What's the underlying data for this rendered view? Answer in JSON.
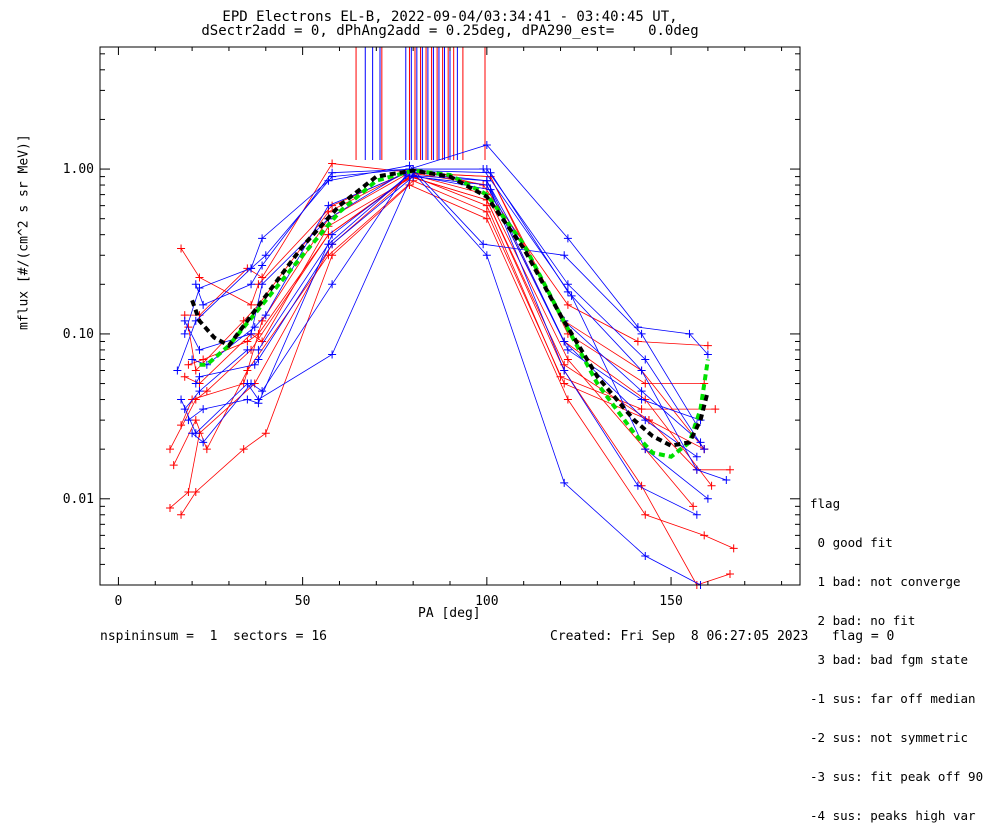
{
  "title_line1": "EPD Electrons EL-B, 2022-09-04/03:34:41 - 03:40:45 UT,",
  "title_line2": "dSectr2add = 0, dPhAng2add = 0.25deg, dPA290_est=    0.0deg",
  "footer": {
    "left": "nspininsum =  1  sectors = 16",
    "right": "Created: Fri Sep  8 06:27:05 2023   flag = 0"
  },
  "legend": {
    "title": "flag",
    "items": [
      " 0 good fit",
      " 1 bad: not converge",
      " 2 bad: no fit",
      " 3 bad: bad fgm state",
      "-1 sus: far off median",
      "-2 sus: not symmetric",
      "-3 sus: fit peak off 90",
      "-4 sus: peaks high var"
    ]
  },
  "colors": {
    "red": "#ff0000",
    "blue": "#0000ff",
    "green": "#00e000",
    "black": "#000000"
  },
  "chart_data": {
    "type": "line",
    "xlabel": "PA [deg]",
    "ylabel": "mflux [#/(cm^2 s sr MeV)]",
    "xlim": [
      -5,
      185
    ],
    "ylim": [
      0.003,
      5.5
    ],
    "ylog": true,
    "x_ticks": [
      0,
      50,
      100,
      150
    ],
    "y_ticks": [
      {
        "value": 0.01,
        "label": "0.01"
      },
      {
        "value": 0.1,
        "label": "0.10"
      },
      {
        "value": 1.0,
        "label": "1.00"
      }
    ],
    "grid": false,
    "legend_position": "lower-right outside",
    "series": [
      {
        "color": "red",
        "x": [
          14,
          19,
          22,
          37,
          58,
          79,
          100,
          121,
          142,
          157,
          166
        ],
        "y": [
          0.0088,
          0.011,
          0.025,
          0.05,
          0.35,
          0.9,
          0.65,
          0.06,
          0.012,
          0.003,
          0.0035
        ]
      },
      {
        "color": "red",
        "x": [
          14,
          21,
          24,
          36,
          57,
          80,
          100,
          122,
          143,
          156
        ],
        "y": [
          0.02,
          0.04,
          0.045,
          0.08,
          0.4,
          0.92,
          0.7,
          0.07,
          0.02,
          0.009
        ]
      },
      {
        "color": "red",
        "x": [
          15,
          21,
          24,
          35,
          57,
          80,
          100,
          121,
          144,
          159
        ],
        "y": [
          0.016,
          0.03,
          0.02,
          0.06,
          0.3,
          0.85,
          0.55,
          0.05,
          0.03,
          0.02
        ]
      },
      {
        "color": "red",
        "x": [
          17,
          21,
          34,
          40,
          58,
          79,
          100,
          122,
          143,
          159,
          167
        ],
        "y": [
          0.008,
          0.011,
          0.02,
          0.025,
          0.3,
          0.8,
          0.5,
          0.04,
          0.008,
          0.006,
          0.005
        ]
      },
      {
        "color": "red",
        "x": [
          17,
          20,
          34,
          39,
          57,
          79,
          100,
          121,
          143,
          161
        ],
        "y": [
          0.028,
          0.04,
          0.05,
          0.12,
          0.5,
          0.95,
          0.8,
          0.09,
          0.04,
          0.012
        ]
      },
      {
        "color": "red",
        "x": [
          17,
          22,
          36,
          38,
          58,
          78,
          101,
          121,
          142,
          159
        ],
        "y": [
          0.33,
          0.22,
          0.15,
          0.2,
          0.6,
          0.95,
          0.9,
          0.12,
          0.06,
          0.02
        ]
      },
      {
        "color": "red",
        "x": [
          18,
          22,
          35,
          39,
          58,
          80,
          101,
          122,
          143,
          159
        ],
        "y": [
          0.13,
          0.13,
          0.25,
          0.22,
          1.08,
          0.95,
          0.9,
          0.1,
          0.05,
          0.05
        ]
      },
      {
        "color": "red",
        "x": [
          19,
          21,
          34,
          38,
          57,
          80,
          99,
          122,
          141,
          160
        ],
        "y": [
          0.11,
          0.06,
          0.12,
          0.15,
          0.55,
          1.0,
          0.8,
          0.15,
          0.09,
          0.085
        ]
      },
      {
        "color": "red",
        "x": [
          18,
          22,
          36,
          39,
          57,
          80,
          100,
          120,
          142,
          162
        ],
        "y": [
          0.055,
          0.05,
          0.1,
          0.09,
          0.45,
          0.9,
          0.6,
          0.055,
          0.035,
          0.035
        ]
      },
      {
        "color": "red",
        "x": [
          19,
          23,
          35,
          38,
          57,
          79,
          100,
          121,
          144,
          157,
          166
        ],
        "y": [
          0.065,
          0.07,
          0.09,
          0.1,
          0.4,
          0.9,
          0.65,
          0.065,
          0.03,
          0.015,
          0.015
        ]
      },
      {
        "color": "blue",
        "x": [
          16,
          21,
          36,
          40,
          58,
          79,
          100,
          122,
          141,
          155,
          160
        ],
        "y": [
          0.06,
          0.12,
          0.25,
          0.3,
          0.9,
          1.0,
          1.4,
          0.38,
          0.11,
          0.1,
          0.075
        ]
      },
      {
        "color": "blue",
        "x": [
          18,
          22,
          36,
          39,
          57,
          79,
          99,
          121,
          142,
          157
        ],
        "y": [
          0.1,
          0.19,
          0.25,
          0.38,
          0.85,
          1.05,
          0.35,
          0.3,
          0.1,
          0.028
        ]
      },
      {
        "color": "blue",
        "x": [
          17,
          21,
          35,
          38,
          58,
          80,
          100,
          121,
          143,
          158
        ],
        "y": [
          0.04,
          0.025,
          0.05,
          0.04,
          0.075,
          0.95,
          0.3,
          0.0125,
          0.0045,
          0.003
        ]
      },
      {
        "color": "blue",
        "x": [
          18,
          22,
          36,
          39,
          57,
          79,
          100,
          122,
          143,
          159
        ],
        "y": [
          0.12,
          0.08,
          0.1,
          0.2,
          0.5,
          1.0,
          1.0,
          0.2,
          0.07,
          0.02
        ]
      },
      {
        "color": "blue",
        "x": [
          18,
          22,
          35,
          38,
          57,
          80,
          101,
          122,
          142,
          157,
          165
        ],
        "y": [
          0.035,
          0.045,
          0.08,
          0.08,
          0.35,
          0.98,
          0.95,
          0.18,
          0.06,
          0.015,
          0.013
        ]
      },
      {
        "color": "blue",
        "x": [
          20,
          23,
          36,
          39,
          58,
          78,
          100,
          121,
          142,
          158
        ],
        "y": [
          0.025,
          0.022,
          0.05,
          0.045,
          0.2,
          0.92,
          0.85,
          0.12,
          0.045,
          0.022
        ]
      },
      {
        "color": "blue",
        "x": [
          21,
          23,
          36,
          39,
          58,
          80,
          99,
          123,
          143,
          160
        ],
        "y": [
          0.2,
          0.15,
          0.2,
          0.26,
          0.95,
          1.0,
          1.0,
          0.17,
          0.02,
          0.01
        ]
      },
      {
        "color": "blue",
        "x": [
          20,
          24,
          37,
          40,
          57,
          79,
          100,
          121,
          143,
          157
        ],
        "y": [
          0.07,
          0.065,
          0.11,
          0.13,
          0.6,
          0.96,
          0.85,
          0.09,
          0.03,
          0.018
        ]
      },
      {
        "color": "blue",
        "x": [
          21,
          22,
          37,
          38,
          58,
          80,
          100,
          122,
          142,
          158
        ],
        "y": [
          0.05,
          0.055,
          0.065,
          0.07,
          0.35,
          0.9,
          0.8,
          0.08,
          0.04,
          0.03
        ]
      },
      {
        "color": "blue",
        "x": [
          19,
          23,
          35,
          38,
          58,
          79,
          101,
          121,
          141,
          157
        ],
        "y": [
          0.03,
          0.035,
          0.04,
          0.038,
          0.4,
          0.92,
          0.75,
          0.06,
          0.012,
          0.008
        ]
      }
    ],
    "fits": [
      {
        "name": "",
        "color": "green",
        "dashed": true,
        "x": [
          22,
          24,
          30,
          40,
          50,
          60,
          70,
          80,
          90,
          100,
          110,
          120,
          130,
          140,
          145,
          150,
          155,
          158,
          160
        ],
        "y": [
          0.065,
          0.065,
          0.085,
          0.16,
          0.3,
          0.55,
          0.85,
          0.98,
          0.92,
          0.7,
          0.35,
          0.13,
          0.05,
          0.025,
          0.019,
          0.018,
          0.022,
          0.035,
          0.07
        ]
      },
      {
        "name": "",
        "color": "black",
        "dashed": true,
        "x": [
          20,
          22,
          26,
          30,
          40,
          50,
          60,
          70,
          80,
          90,
          100,
          110,
          120,
          130,
          140,
          145,
          150,
          155,
          158,
          160
        ],
        "y": [
          0.16,
          0.12,
          0.095,
          0.085,
          0.17,
          0.34,
          0.6,
          0.9,
          0.98,
          0.9,
          0.68,
          0.33,
          0.13,
          0.055,
          0.03,
          0.024,
          0.021,
          0.022,
          0.03,
          0.045
        ]
      }
    ],
    "vertical_markers": [
      {
        "color": "red",
        "x": [
          64.5,
          71.5,
          79,
          80.5,
          82,
          83.5,
          85,
          86.5,
          88,
          89.5,
          91,
          93.5,
          99.5
        ]
      },
      {
        "color": "blue",
        "x": [
          67,
          69,
          71,
          78,
          79.5,
          81,
          82.5,
          84,
          85.5,
          87,
          88.5,
          90,
          92
        ]
      }
    ]
  }
}
